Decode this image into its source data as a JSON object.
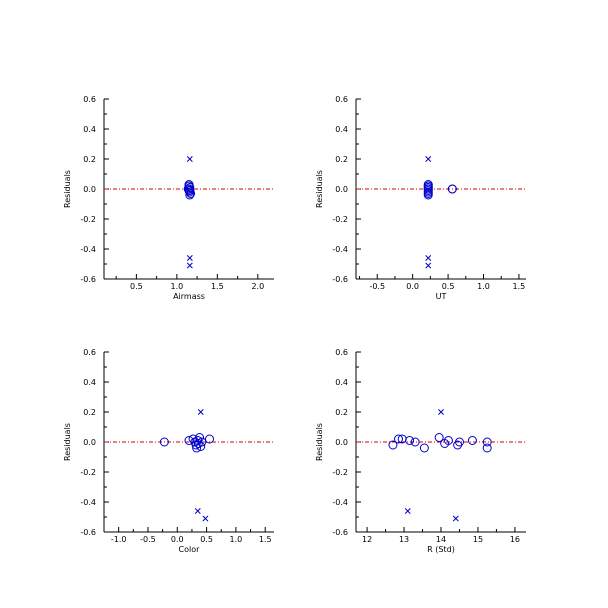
{
  "chart_data": [
    {
      "type": "scatter",
      "xlabel": "Airmass",
      "ylabel": "Residuals",
      "xlim": [
        0.1,
        2.2
      ],
      "ylim": [
        -0.6,
        0.6
      ],
      "xticks": [
        "0.5",
        "1.0",
        "1.5",
        "2.0"
      ],
      "xtick_values": [
        0.5,
        1.0,
        1.5,
        2.0
      ],
      "yticks": [
        "-0.6",
        "-0.4",
        "-0.2",
        "0.0",
        "0.2",
        "0.4",
        "0.6"
      ],
      "ytick_values": [
        -0.6,
        -0.4,
        -0.2,
        0.0,
        0.2,
        0.4,
        0.6
      ],
      "zero_line": true,
      "series": [
        {
          "marker": "circle",
          "points": [
            [
              1.15,
              0.03
            ],
            [
              1.15,
              0.02
            ],
            [
              1.16,
              0.01
            ],
            [
              1.15,
              0.0
            ],
            [
              1.16,
              -0.01
            ],
            [
              1.16,
              -0.02
            ],
            [
              1.17,
              -0.03
            ],
            [
              1.15,
              0.0
            ],
            [
              1.14,
              0.0
            ],
            [
              1.15,
              -0.01
            ],
            [
              1.16,
              -0.04
            ],
            [
              1.15,
              0.02
            ]
          ]
        },
        {
          "marker": "cross",
          "points": [
            [
              1.16,
              0.2
            ],
            [
              1.16,
              -0.46
            ],
            [
              1.16,
              -0.51
            ]
          ]
        }
      ]
    },
    {
      "type": "scatter",
      "xlabel": "UT",
      "ylabel": "Residuals",
      "xlim": [
        -0.8,
        1.6
      ],
      "ylim": [
        -0.6,
        0.6
      ],
      "xticks": [
        "-0.5",
        "0.0",
        "0.5",
        "1.0",
        "1.5"
      ],
      "xtick_values": [
        -0.5,
        0.0,
        0.5,
        1.0,
        1.5
      ],
      "yticks": [
        "-0.6",
        "-0.4",
        "-0.2",
        "0.0",
        "0.2",
        "0.4",
        "0.6"
      ],
      "ytick_values": [
        -0.6,
        -0.4,
        -0.2,
        0.0,
        0.2,
        0.4,
        0.6
      ],
      "zero_line": true,
      "series": [
        {
          "marker": "circle",
          "points": [
            [
              0.22,
              0.03
            ],
            [
              0.22,
              0.02
            ],
            [
              0.22,
              0.01
            ],
            [
              0.22,
              0.0
            ],
            [
              0.22,
              -0.01
            ],
            [
              0.22,
              -0.02
            ],
            [
              0.22,
              -0.03
            ],
            [
              0.22,
              0.0
            ],
            [
              0.22,
              -0.04
            ],
            [
              0.22,
              0.02
            ],
            [
              0.56,
              0.0
            ],
            [
              0.56,
              0.0
            ]
          ]
        },
        {
          "marker": "cross",
          "points": [
            [
              0.22,
              0.2
            ],
            [
              0.22,
              -0.46
            ],
            [
              0.22,
              -0.51
            ]
          ]
        }
      ]
    },
    {
      "type": "scatter",
      "xlabel": "Color",
      "ylabel": "Residuals",
      "xlim": [
        -1.25,
        1.65
      ],
      "ylim": [
        -0.6,
        0.6
      ],
      "xticks": [
        "-1.0",
        "-0.5",
        "0.0",
        "0.5",
        "1.0",
        "1.5"
      ],
      "xtick_values": [
        -1.0,
        -0.5,
        0.0,
        0.5,
        1.0,
        1.5
      ],
      "yticks": [
        "-0.6",
        "-0.4",
        "-0.2",
        "0.0",
        "0.2",
        "0.4",
        "0.6"
      ],
      "ytick_values": [
        -0.6,
        -0.4,
        -0.2,
        0.0,
        0.2,
        0.4,
        0.6
      ],
      "zero_line": true,
      "series": [
        {
          "marker": "circle",
          "points": [
            [
              -0.22,
              0.0
            ],
            [
              0.2,
              0.01
            ],
            [
              0.27,
              0.02
            ],
            [
              0.3,
              0.0
            ],
            [
              0.32,
              -0.02
            ],
            [
              0.33,
              -0.04
            ],
            [
              0.35,
              0.01
            ],
            [
              0.36,
              -0.01
            ],
            [
              0.38,
              0.03
            ],
            [
              0.4,
              -0.03
            ],
            [
              0.42,
              0.0
            ],
            [
              0.55,
              0.02
            ]
          ]
        },
        {
          "marker": "cross",
          "points": [
            [
              0.4,
              0.2
            ],
            [
              0.35,
              -0.46
            ],
            [
              0.48,
              -0.51
            ]
          ]
        }
      ]
    },
    {
      "type": "scatter",
      "xlabel": "R (Std)",
      "ylabel": "Residuals",
      "xlim": [
        11.7,
        16.3
      ],
      "ylim": [
        -0.6,
        0.6
      ],
      "xticks": [
        "12",
        "13",
        "14",
        "15",
        "16"
      ],
      "xtick_values": [
        12,
        13,
        14,
        15,
        16
      ],
      "yticks": [
        "-0.6",
        "-0.4",
        "-0.2",
        "0.0",
        "0.2",
        "0.4",
        "0.6"
      ],
      "ytick_values": [
        -0.6,
        -0.4,
        -0.2,
        0.0,
        0.2,
        0.4,
        0.6
      ],
      "zero_line": true,
      "series": [
        {
          "marker": "circle",
          "points": [
            [
              12.7,
              -0.02
            ],
            [
              12.85,
              0.02
            ],
            [
              12.95,
              0.02
            ],
            [
              13.15,
              0.01
            ],
            [
              13.3,
              0.0
            ],
            [
              13.55,
              -0.04
            ],
            [
              13.95,
              0.03
            ],
            [
              14.1,
              -0.01
            ],
            [
              14.2,
              0.01
            ],
            [
              14.45,
              -0.02
            ],
            [
              14.5,
              0.0
            ],
            [
              14.85,
              0.01
            ],
            [
              15.25,
              0.0
            ],
            [
              15.25,
              -0.04
            ]
          ]
        },
        {
          "marker": "cross",
          "points": [
            [
              14.0,
              0.2
            ],
            [
              13.1,
              -0.46
            ],
            [
              14.4,
              -0.51
            ]
          ]
        }
      ]
    }
  ]
}
